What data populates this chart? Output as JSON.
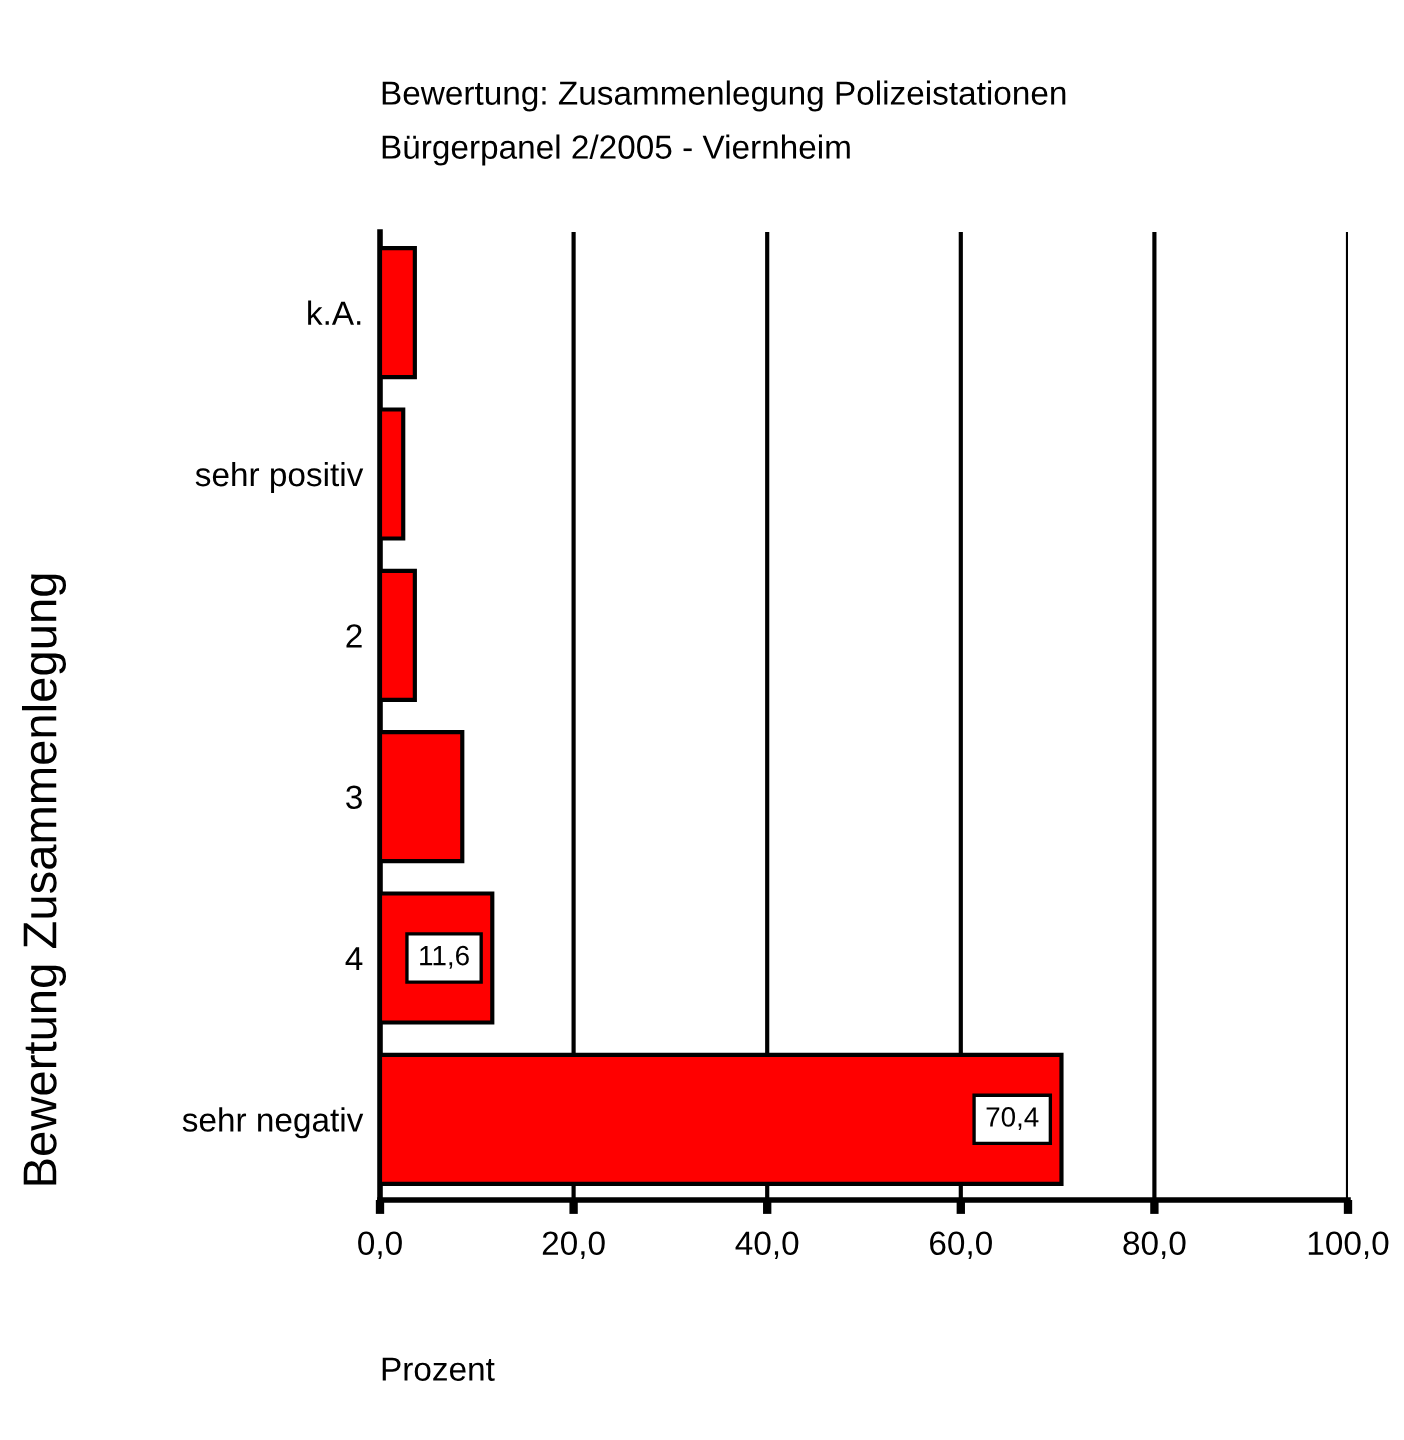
{
  "chart_data": {
    "type": "bar",
    "orientation": "horizontal",
    "title": "Bewertung: Zusammenlegung Polizeistationen",
    "subtitle": "Bürgerpanel 2/2005 - Viernheim",
    "xlabel": "Prozent",
    "ylabel": "Bewertung Zusammenlegung",
    "categories": [
      "k.A.",
      "sehr positiv",
      "2",
      "3",
      "4",
      "sehr negativ"
    ],
    "values": [
      3.6,
      2.4,
      3.6,
      8.5,
      11.6,
      70.4
    ],
    "value_labels": [
      null,
      null,
      null,
      null,
      "11,6",
      "70,4"
    ],
    "color": "#ff0000",
    "xlim": [
      0,
      100
    ],
    "xticks": [
      {
        "value": 0,
        "label": "0,0"
      },
      {
        "value": 20,
        "label": "20,0"
      },
      {
        "value": 40,
        "label": "40,0"
      },
      {
        "value": 60,
        "label": "60,0"
      },
      {
        "value": 80,
        "label": "80,0"
      },
      {
        "value": 100,
        "label": "100,0"
      }
    ],
    "grid": "x",
    "legend": false
  }
}
